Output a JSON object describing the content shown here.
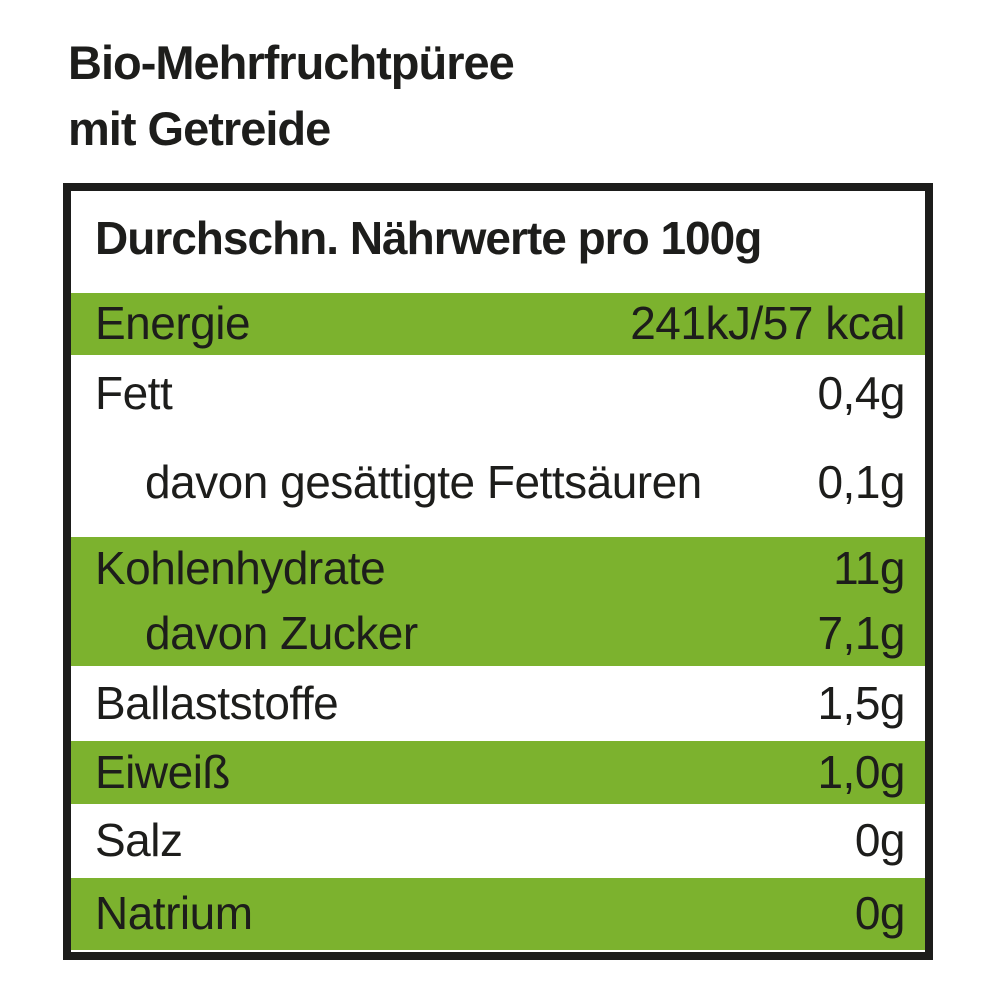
{
  "title": {
    "line1": "Bio-Mehrfruchtpüree",
    "line2": "mit Getreide"
  },
  "table": {
    "header": "Durchschn. Nährwerte pro 100g",
    "rows": [
      {
        "label": "Energie",
        "value": "241kJ/57 kcal",
        "highlight": true,
        "indent": false
      },
      {
        "label": "Fett",
        "value": "0,4g",
        "highlight": false,
        "indent": false
      },
      {
        "label": "davon gesättigte Fettsäuren",
        "value": "0,1g",
        "highlight": false,
        "indent": true
      },
      {
        "label": "Kohlenhydrate",
        "value": "11g",
        "highlight": true,
        "indent": false
      },
      {
        "label": "davon Zucker",
        "value": "7,1g",
        "highlight": true,
        "indent": true
      },
      {
        "label": "Ballaststoffe",
        "value": "1,5g",
        "highlight": false,
        "indent": false
      },
      {
        "label": "Eiweiß",
        "value": "1,0g",
        "highlight": true,
        "indent": false
      },
      {
        "label": "Salz",
        "value": "0g",
        "highlight": false,
        "indent": false
      },
      {
        "label": "Natrium",
        "value": "0g",
        "highlight": true,
        "indent": false
      }
    ]
  },
  "colors": {
    "highlight_green": "#7cb22e",
    "text": "#1d1d1b",
    "border": "#1d1d1b",
    "background": "#ffffff"
  }
}
